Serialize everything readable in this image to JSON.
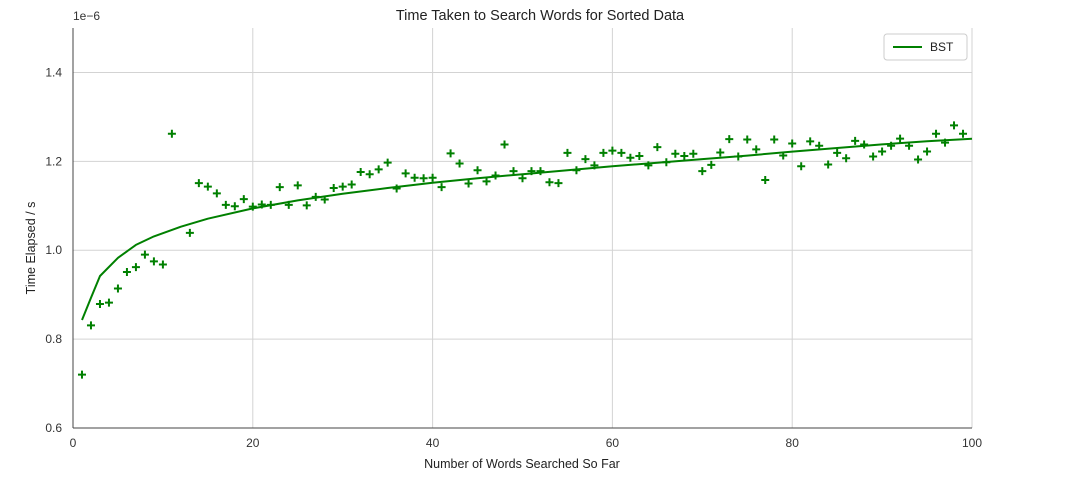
{
  "chart_data": {
    "type": "scatter",
    "title": "Time Taken to Search Words for Sorted Data",
    "xlabel": "Number of Words Searched So Far",
    "ylabel": "Time Elapsed / s",
    "offset_text": "1e−6",
    "xlim": [
      0,
      100
    ],
    "ylim": [
      0.6,
      1.5
    ],
    "xticks": [
      0,
      20,
      40,
      60,
      80,
      100
    ],
    "xtick_labels": [
      "0",
      "20",
      "40",
      "60",
      "80",
      "100"
    ],
    "yticks": [
      0.6,
      0.8,
      1.0,
      1.2,
      1.4
    ],
    "ytick_labels": [
      "0.6",
      "0.8",
      "1.0",
      "1.2",
      "1.4"
    ],
    "grid": true,
    "legend_position": "top-right",
    "color": "#008000",
    "series": [
      {
        "name": "",
        "kind": "scatter",
        "marker": "plus",
        "points": [
          [
            1,
            0.72
          ],
          [
            2,
            0.831
          ],
          [
            3,
            0.879
          ],
          [
            4,
            0.882
          ],
          [
            5,
            0.914
          ],
          [
            6,
            0.951
          ],
          [
            7,
            0.962
          ],
          [
            8,
            0.99
          ],
          [
            9,
            0.975
          ],
          [
            10,
            0.968
          ],
          [
            11,
            1.262
          ],
          [
            13,
            1.039
          ],
          [
            14,
            1.151
          ],
          [
            15,
            1.143
          ],
          [
            16,
            1.128
          ],
          [
            17,
            1.102
          ],
          [
            18,
            1.099
          ],
          [
            19,
            1.115
          ],
          [
            20,
            1.098
          ],
          [
            21,
            1.103
          ],
          [
            22,
            1.102
          ],
          [
            23,
            1.142
          ],
          [
            24,
            1.102
          ],
          [
            25,
            1.146
          ],
          [
            26,
            1.101
          ],
          [
            27,
            1.12
          ],
          [
            28,
            1.114
          ],
          [
            29,
            1.14
          ],
          [
            30,
            1.143
          ],
          [
            31,
            1.148
          ],
          [
            32,
            1.176
          ],
          [
            33,
            1.171
          ],
          [
            34,
            1.182
          ],
          [
            35,
            1.197
          ],
          [
            36,
            1.139
          ],
          [
            37,
            1.173
          ],
          [
            38,
            1.163
          ],
          [
            39,
            1.162
          ],
          [
            40,
            1.163
          ],
          [
            41,
            1.142
          ],
          [
            42,
            1.218
          ],
          [
            43,
            1.195
          ],
          [
            44,
            1.15
          ],
          [
            45,
            1.18
          ],
          [
            46,
            1.155
          ],
          [
            47,
            1.168
          ],
          [
            48,
            1.238
          ],
          [
            49,
            1.178
          ],
          [
            50,
            1.162
          ],
          [
            51,
            1.178
          ],
          [
            52,
            1.178
          ],
          [
            53,
            1.153
          ],
          [
            54,
            1.151
          ],
          [
            55,
            1.219
          ],
          [
            56,
            1.18
          ],
          [
            57,
            1.205
          ],
          [
            58,
            1.191
          ],
          [
            59,
            1.219
          ],
          [
            60,
            1.224
          ],
          [
            61,
            1.219
          ],
          [
            62,
            1.208
          ],
          [
            63,
            1.212
          ],
          [
            64,
            1.191
          ],
          [
            65,
            1.232
          ],
          [
            66,
            1.198
          ],
          [
            67,
            1.217
          ],
          [
            68,
            1.212
          ],
          [
            69,
            1.217
          ],
          [
            70,
            1.178
          ],
          [
            71,
            1.192
          ],
          [
            72,
            1.22
          ],
          [
            73,
            1.25
          ],
          [
            74,
            1.211
          ],
          [
            75,
            1.249
          ],
          [
            76,
            1.227
          ],
          [
            77,
            1.158
          ],
          [
            78,
            1.249
          ],
          [
            79,
            1.213
          ],
          [
            80,
            1.24
          ],
          [
            81,
            1.189
          ],
          [
            82,
            1.245
          ],
          [
            83,
            1.235
          ],
          [
            84,
            1.193
          ],
          [
            85,
            1.219
          ],
          [
            86,
            1.207
          ],
          [
            87,
            1.246
          ],
          [
            88,
            1.238
          ],
          [
            89,
            1.211
          ],
          [
            90,
            1.222
          ],
          [
            91,
            1.235
          ],
          [
            92,
            1.251
          ],
          [
            93,
            1.235
          ],
          [
            94,
            1.204
          ],
          [
            95,
            1.222
          ],
          [
            96,
            1.262
          ],
          [
            97,
            1.242
          ],
          [
            98,
            1.281
          ],
          [
            99,
            1.262
          ]
        ]
      },
      {
        "name": "BST",
        "kind": "line",
        "points": [
          [
            1,
            0.843
          ],
          [
            2,
            0.893
          ],
          [
            3,
            0.942
          ],
          [
            5,
            0.983
          ],
          [
            7,
            1.012
          ],
          [
            9,
            1.031
          ],
          [
            12,
            1.053
          ],
          [
            15,
            1.071
          ],
          [
            20,
            1.094
          ],
          [
            25,
            1.112
          ],
          [
            30,
            1.127
          ],
          [
            35,
            1.14
          ],
          [
            40,
            1.152
          ],
          [
            45,
            1.162
          ],
          [
            50,
            1.171
          ],
          [
            55,
            1.18
          ],
          [
            60,
            1.189
          ],
          [
            65,
            1.197
          ],
          [
            70,
            1.205
          ],
          [
            75,
            1.213
          ],
          [
            80,
            1.222
          ],
          [
            85,
            1.23
          ],
          [
            90,
            1.238
          ],
          [
            95,
            1.245
          ],
          [
            100,
            1.251
          ]
        ]
      }
    ]
  }
}
